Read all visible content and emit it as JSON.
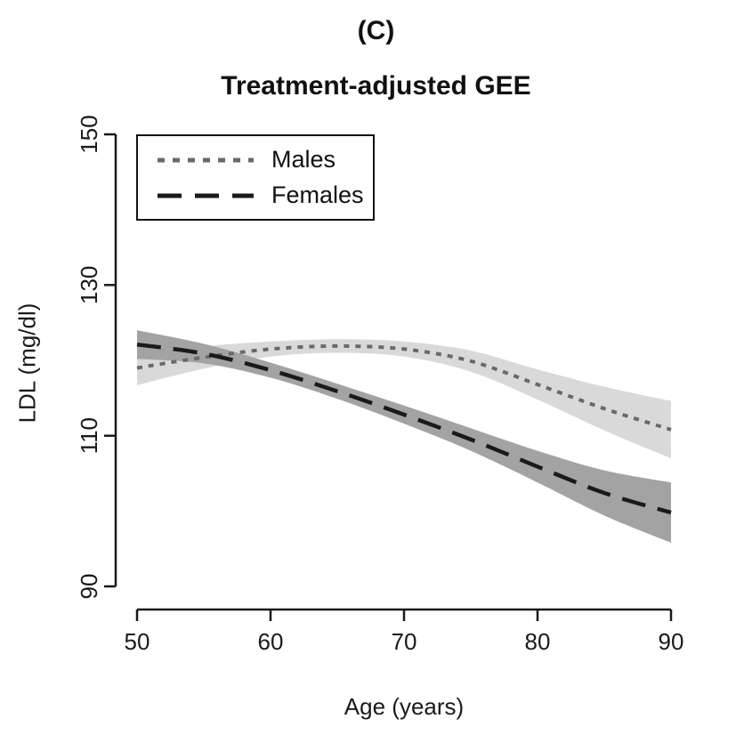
{
  "figure": {
    "panel_label": "(C)",
    "title": "Treatment-adjusted GEE",
    "x_label": "Age (years)",
    "y_label": "LDL (mg/dl)"
  },
  "chart_data": {
    "type": "line",
    "panel_label": "(C)",
    "title": "Treatment-adjusted GEE",
    "xlabel": "Age (years)",
    "ylabel": "LDL (mg/dl)",
    "xlim": [
      50,
      90
    ],
    "ylim": [
      90,
      150
    ],
    "x_ticks": [
      50,
      60,
      70,
      80,
      90
    ],
    "y_ticks": [
      90,
      110,
      130,
      150
    ],
    "grid": false,
    "legend_position": "top-left",
    "axis_color": "#1a1a1a",
    "x": [
      50,
      55,
      60,
      65,
      70,
      75,
      80,
      85,
      90
    ],
    "series": [
      {
        "name": "Males",
        "style": "dotted",
        "line_color": "#696969",
        "band_color": "#d9d9d9",
        "values": [
          119.0,
          120.4,
          121.5,
          121.9,
          121.5,
          119.9,
          116.8,
          113.6,
          110.8
        ],
        "ci_lower": [
          116.7,
          118.9,
          120.5,
          121.0,
          120.5,
          118.5,
          114.8,
          110.7,
          107.0
        ],
        "ci_upper": [
          121.3,
          121.9,
          122.5,
          122.8,
          122.5,
          121.3,
          118.8,
          116.5,
          114.6
        ]
      },
      {
        "name": "Females",
        "style": "longdash",
        "line_color": "#1a1a1a",
        "band_color": "#a3a3a3",
        "values": [
          122.1,
          120.9,
          118.7,
          115.9,
          112.8,
          109.5,
          105.9,
          102.4,
          99.8
        ],
        "ci_lower": [
          120.2,
          119.6,
          117.7,
          114.9,
          111.6,
          108.0,
          103.8,
          99.4,
          95.8
        ],
        "ci_upper": [
          124.0,
          122.2,
          119.7,
          116.9,
          114.0,
          111.0,
          108.0,
          105.4,
          103.8
        ]
      }
    ]
  }
}
